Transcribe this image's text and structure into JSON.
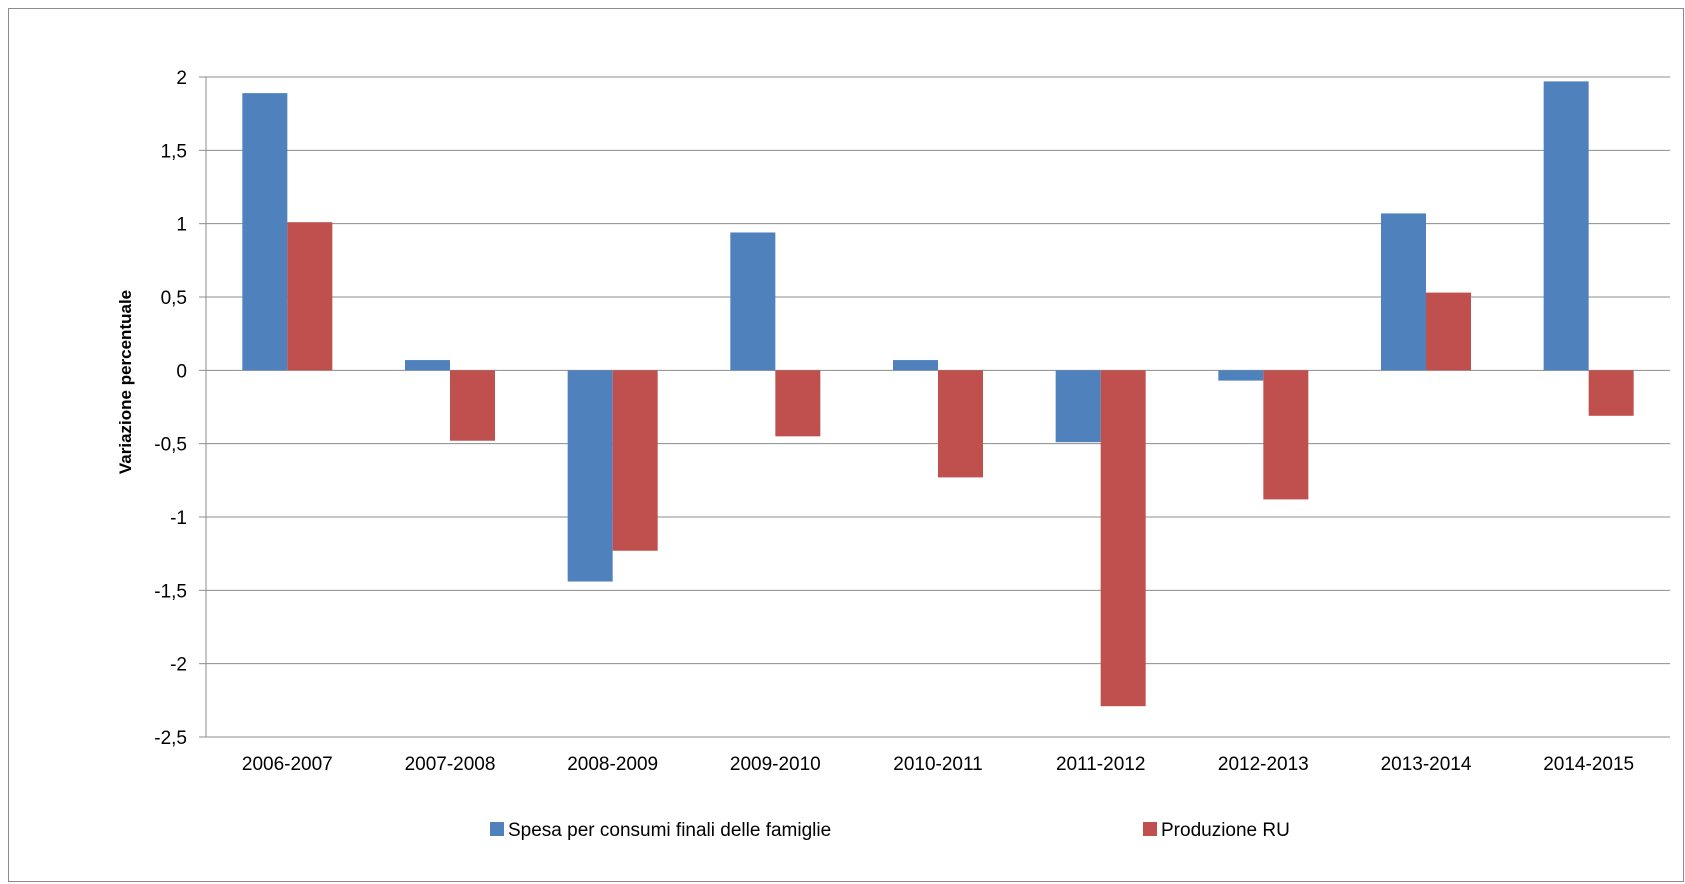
{
  "chart_data": {
    "type": "bar",
    "title": "",
    "xlabel": "",
    "ylabel": "Variazione percentuale",
    "ylim": [
      -2.5,
      2
    ],
    "ytick_step": 0.5,
    "ytick_labels": [
      "2",
      "1,5",
      "1",
      "0,5",
      "0",
      "-0,5",
      "-1",
      "-1,5",
      "-2",
      "-2,5"
    ],
    "grid": true,
    "legend_position": "bottom",
    "categories": [
      "2006-2007",
      "2007-2008",
      "2008-2009",
      "2009-2010",
      "2010-2011",
      "2011-2012",
      "2012-2013",
      "2013-2014",
      "2014-2015"
    ],
    "series": [
      {
        "name": "Spesa per consumi finali delle famiglie",
        "color": "#4f81bd",
        "values": [
          1.89,
          0.07,
          -1.44,
          0.94,
          0.07,
          -0.49,
          -0.07,
          1.07,
          1.97
        ]
      },
      {
        "name": "Produzione RU",
        "color": "#c0504d",
        "values": [
          1.01,
          -0.48,
          -1.23,
          -0.45,
          -0.73,
          -2.29,
          -0.88,
          0.53,
          -0.31
        ]
      }
    ]
  }
}
